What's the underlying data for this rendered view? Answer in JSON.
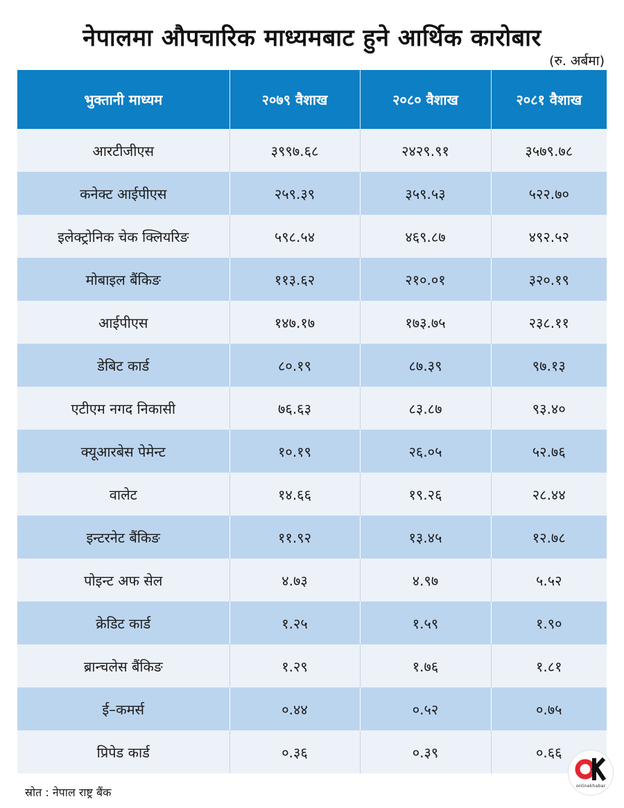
{
  "header": {
    "title": "नेपालमा औपचारिक माध्यमबाट हुने आर्थिक कारोबार",
    "unit": "(रु. अर्बमा)"
  },
  "chart_data": {
    "type": "table",
    "columns": [
      "भुक्तानी माध्यम",
      "२०७९ वैशाख",
      "२०८० वैशाख",
      "२०८१ वैशाख"
    ],
    "rows": [
      [
        "आरटीजीएस",
        "३९९७.६८",
        "२४२९.९१",
        "३५७९.७८"
      ],
      [
        "कनेक्ट आईपीएस",
        "२५९.३९",
        "३५९.५३",
        "५२२.७०"
      ],
      [
        "इलेक्ट्रोनिक चेक क्लियरिङ",
        "५९८.५४",
        "४६९.८७",
        "४९२.५२"
      ],
      [
        "मोबाइल बैंकिङ",
        "११३.६२",
        "२१०.०१",
        "३२०.१९"
      ],
      [
        "आईपीएस",
        "१४७.१७",
        "१७३.७५",
        "२३८.११"
      ],
      [
        "डेबिट कार्ड",
        "८०.१९",
        "८७.३९",
        "९७.१३"
      ],
      [
        "एटीएम नगद निकासी",
        "७६.६३",
        "८३.८७",
        "९३.४०"
      ],
      [
        "क्यूआरबेस पेमेन्ट",
        "१०.१९",
        "२६.०५",
        "५२.७६"
      ],
      [
        "वालेट",
        "१४.६६",
        "१९.२६",
        "२८.४४"
      ],
      [
        "इन्टरनेट बैंकिङ",
        "११.९२",
        "१३.४५",
        "१२.७८"
      ],
      [
        "पोइन्ट अफ सेल",
        "४.७३",
        "४.९७",
        "५.५२"
      ],
      [
        "क्रेडिट कार्ड",
        "१.२५",
        "१.५९",
        "१.९०"
      ],
      [
        "ब्रान्चलेस बैंकिङ",
        "१.२९",
        "१.७६",
        "१.८१"
      ],
      [
        "ई–कमर्स",
        "०.४४",
        "०.५२",
        "०.७५"
      ],
      [
        "प्रिपेड कार्ड",
        "०.३६",
        "०.३९",
        "०.६६"
      ]
    ]
  },
  "footer": {
    "source": "स्रोत : नेपाल राष्ट्र बैंक",
    "logo_text": "OK",
    "logo_subtext": "onlinekhabar"
  },
  "colors": {
    "header_bg": "#0d7fc4",
    "row_light": "#edf2f8",
    "row_dark": "#bcd5ef",
    "logo_red": "#e3262f"
  }
}
